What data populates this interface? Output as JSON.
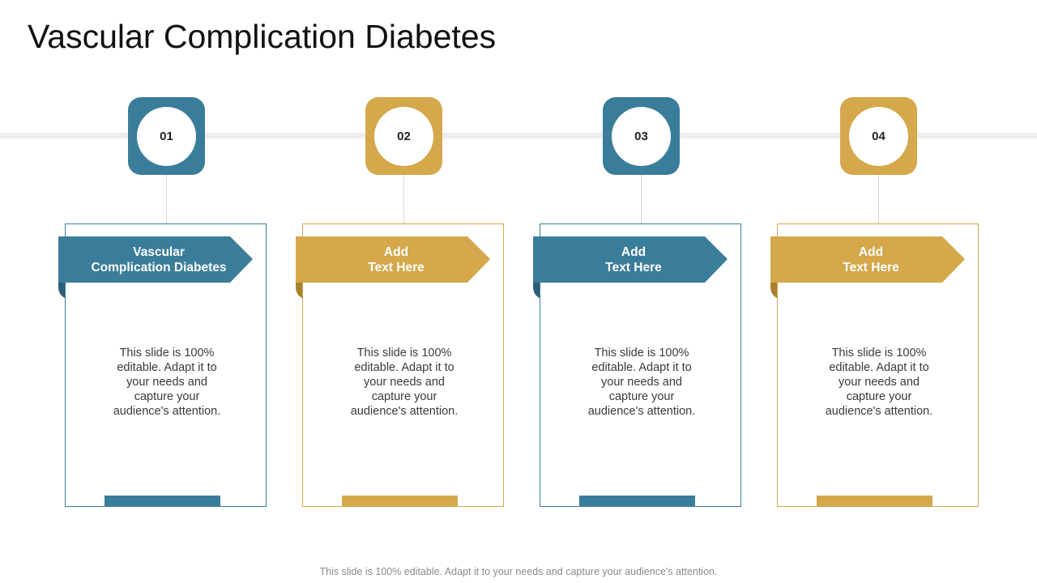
{
  "title": "Vascular Complication Diabetes",
  "colors": {
    "teal": "#3A7D9B",
    "gold": "#D4A84B",
    "teal_dark": "#2B5F78",
    "gold_dark": "#A8812F"
  },
  "steps": [
    {
      "number": "01",
      "heading": "Vascular\nComplication Diabetes",
      "body": "This slide is 100% editable. Adapt it to your needs and capture your audience's attention.",
      "color": "teal"
    },
    {
      "number": "02",
      "heading": "Add\nText Here",
      "body": "This slide is 100% editable. Adapt it to your needs and capture your audience's attention.",
      "color": "gold"
    },
    {
      "number": "03",
      "heading": "Add\nText Here",
      "body": "This slide is 100% editable. Adapt it to your needs and capture your audience's attention.",
      "color": "teal"
    },
    {
      "number": "04",
      "heading": "Add\nText Here",
      "body": "This slide is 100% editable. Adapt it to your needs and capture your audience's attention.",
      "color": "gold"
    }
  ],
  "footer": "This slide is 100% editable. Adapt it to your needs and capture your audience's attention."
}
